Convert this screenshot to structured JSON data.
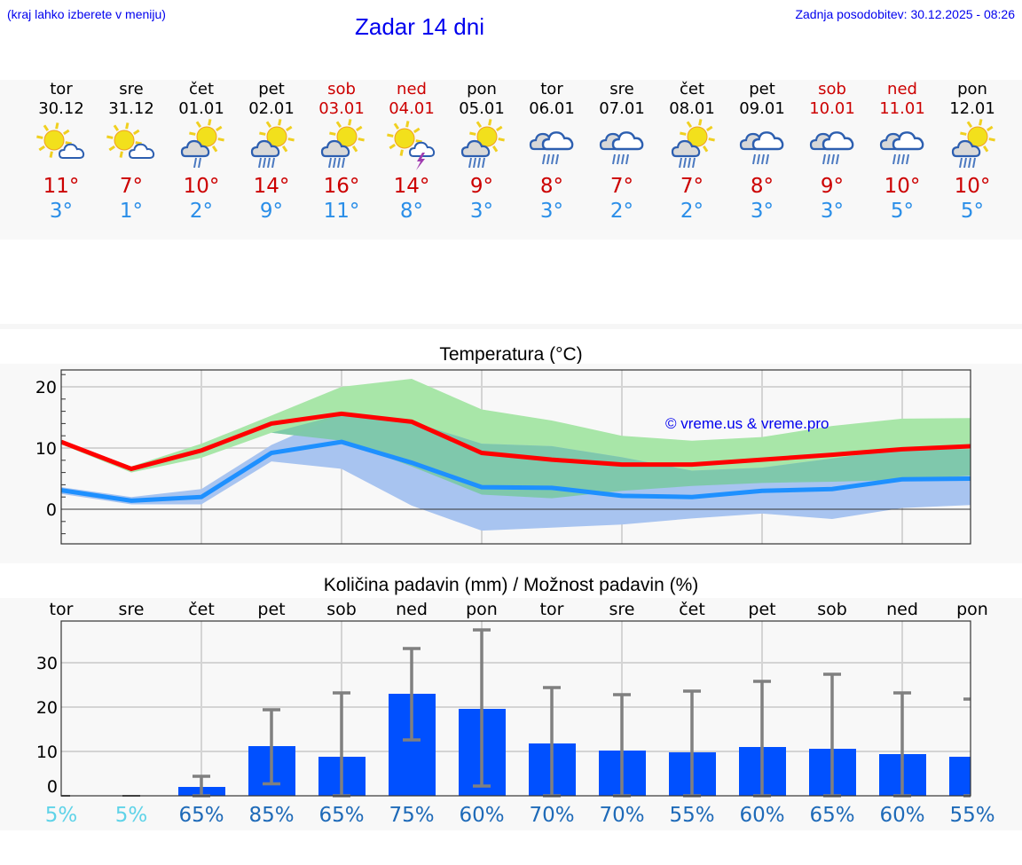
{
  "header": {
    "hint": "(kraj lahko izberete v meniju)",
    "title": "Zadar 14 dni",
    "updated": "Zadnja posodobitev: 30.12.2025 - 08:26"
  },
  "days": [
    {
      "name": "tor",
      "date": "30.12",
      "weekend": false,
      "icon": "sun-cloud-icon",
      "tmax": "11°",
      "tmin": "3°"
    },
    {
      "name": "sre",
      "date": "31.12",
      "weekend": false,
      "icon": "sun-cloud-icon",
      "tmax": "7°",
      "tmin": "1°"
    },
    {
      "name": "čet",
      "date": "01.01",
      "weekend": false,
      "icon": "sun-cloud-light-rain-icon",
      "tmax": "10°",
      "tmin": "2°"
    },
    {
      "name": "pet",
      "date": "02.01",
      "weekend": false,
      "icon": "sun-cloud-rain-icon",
      "tmax": "14°",
      "tmin": "9°"
    },
    {
      "name": "sob",
      "date": "03.01",
      "weekend": true,
      "icon": "sun-cloud-rain-icon",
      "tmax": "16°",
      "tmin": "11°"
    },
    {
      "name": "ned",
      "date": "04.01",
      "weekend": true,
      "icon": "sun-cloud-thunder-icon",
      "tmax": "14°",
      "tmin": "8°"
    },
    {
      "name": "pon",
      "date": "05.01",
      "weekend": false,
      "icon": "sun-cloud-rain-icon",
      "tmax": "9°",
      "tmin": "3°"
    },
    {
      "name": "tor",
      "date": "06.01",
      "weekend": false,
      "icon": "clouds-rain-icon",
      "tmax": "8°",
      "tmin": "3°"
    },
    {
      "name": "sre",
      "date": "07.01",
      "weekend": false,
      "icon": "clouds-rain-icon",
      "tmax": "7°",
      "tmin": "2°"
    },
    {
      "name": "čet",
      "date": "08.01",
      "weekend": false,
      "icon": "sun-cloud-rain-icon",
      "tmax": "7°",
      "tmin": "2°"
    },
    {
      "name": "pet",
      "date": "09.01",
      "weekend": false,
      "icon": "clouds-rain-icon",
      "tmax": "8°",
      "tmin": "3°"
    },
    {
      "name": "sob",
      "date": "10.01",
      "weekend": true,
      "icon": "clouds-rain-icon",
      "tmax": "9°",
      "tmin": "3°"
    },
    {
      "name": "ned",
      "date": "11.01",
      "weekend": true,
      "icon": "clouds-rain-icon",
      "tmax": "10°",
      "tmin": "5°"
    },
    {
      "name": "pon",
      "date": "12.01",
      "weekend": false,
      "icon": "sun-cloud-rain-icon",
      "tmax": "10°",
      "tmin": "5°"
    }
  ],
  "colors": {
    "max_line": "#ff0000",
    "min_line": "#1e90ff",
    "max_band": "#a8e6a8",
    "min_band": "#a8c4f0",
    "overlap": "#7cc8a8",
    "bar": "#0050ff",
    "error": "#808080",
    "weekend": "#cc0000",
    "tmin": "#2a8ee8",
    "pct_low": "#5fd3e8",
    "pct": "#1e6ab8"
  },
  "watermark": "© vreme.us & vreme.pro",
  "chart_data": [
    {
      "type": "line",
      "title": "Temperatura (°C)",
      "xlabel": "",
      "ylabel": "",
      "ylim": [
        -5.7,
        22.8
      ],
      "yticks": [
        "20",
        "10",
        "0"
      ],
      "categories": [
        "tor",
        "sre",
        "čet",
        "pet",
        "sob",
        "ned",
        "pon",
        "tor",
        "sre",
        "čet",
        "pet",
        "sob",
        "ned",
        "pon"
      ],
      "series": [
        {
          "name": "max",
          "values": [
            11,
            6.6,
            9.6,
            14,
            15.6,
            14.3,
            9.2,
            8.1,
            7.3,
            7.3,
            8.1,
            8.9,
            9.8,
            10.3
          ]
        },
        {
          "name": "min",
          "values": [
            3.1,
            1.4,
            2,
            9.2,
            11,
            7.6,
            3.6,
            3.5,
            2.2,
            2,
            3,
            3.3,
            4.9,
            5
          ]
        },
        {
          "name": "max_band_upper",
          "values": [
            11.3,
            7,
            10.7,
            15.3,
            20,
            21.3,
            16.3,
            14.5,
            12,
            11.2,
            11.8,
            13.6,
            14.8,
            14.9
          ]
        },
        {
          "name": "max_band_lower",
          "values": [
            10.6,
            6,
            8.4,
            12.5,
            11.2,
            7.0,
            2.4,
            1.8,
            3.0,
            3.8,
            4.3,
            4.5,
            4.8,
            5.5
          ]
        },
        {
          "name": "min_band_upper",
          "values": [
            3.6,
            2,
            3.3,
            10.5,
            15.5,
            14.3,
            10.7,
            10.3,
            8.5,
            6.3,
            6.8,
            8.3,
            9.8,
            9.8
          ]
        },
        {
          "name": "min_band_lower",
          "values": [
            2.5,
            0.8,
            0.8,
            7.8,
            6.6,
            0.6,
            -3.5,
            -3,
            -2.5,
            -1.5,
            -0.7,
            -1.6,
            0.2,
            0.7
          ]
        }
      ],
      "grid": true,
      "annotation": "© vreme.us & vreme.pro"
    },
    {
      "type": "bar",
      "title": "Količina padavin (mm) / Možnost padavin (%)",
      "xlabel": "",
      "ylabel": "",
      "ylim": [
        0,
        39
      ],
      "yticks": [
        "30",
        "20",
        "10",
        "0"
      ],
      "categories": [
        "tor",
        "sre",
        "čet",
        "pet",
        "sob",
        "ned",
        "pon",
        "tor",
        "sre",
        "čet",
        "pet",
        "sob",
        "ned",
        "pon"
      ],
      "values": [
        0,
        0,
        2,
        11.2,
        8.8,
        23,
        19.6,
        11.8,
        10.2,
        9.8,
        11,
        10.6,
        9.4,
        8.8
      ],
      "error_high": [
        0,
        0,
        4.4,
        19.4,
        23.2,
        33.2,
        37.4,
        24.4,
        22.8,
        23.6,
        25.8,
        27.4,
        23.2,
        21.8
      ],
      "error_low": [
        0,
        0,
        0,
        2.7,
        0,
        12.6,
        2.2,
        0,
        0,
        0,
        0,
        0,
        0,
        0
      ],
      "probability": [
        "5%",
        "5%",
        "65%",
        "85%",
        "65%",
        "75%",
        "60%",
        "70%",
        "70%",
        "55%",
        "60%",
        "65%",
        "60%",
        "55%"
      ],
      "grid": true
    }
  ]
}
